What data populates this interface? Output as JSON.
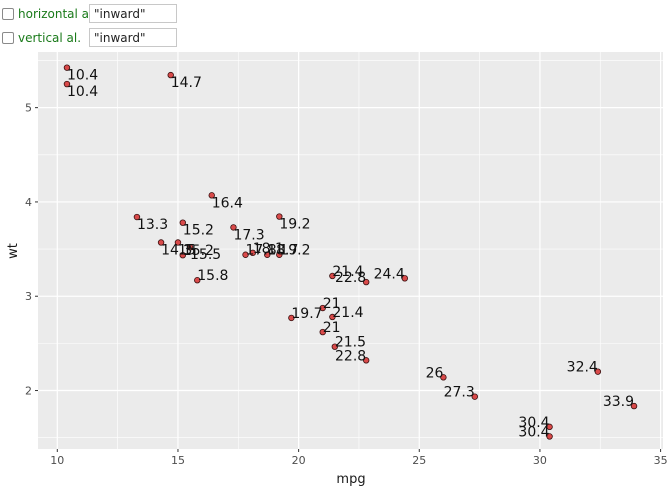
{
  "controls": [
    {
      "label": "horizontal al.",
      "value": "\"inward\"",
      "checked": false
    },
    {
      "label": "vertical al.",
      "value": "\"inward\"",
      "checked": false
    }
  ],
  "chart_data": {
    "type": "scatter",
    "xlabel": "mpg",
    "ylabel": "wt",
    "xlim": [
      9.2,
      35.1
    ],
    "ylim": [
      1.38,
      5.59
    ],
    "xticks": [
      10,
      15,
      20,
      25,
      30,
      35
    ],
    "yticks": [
      2,
      3,
      4,
      5
    ],
    "grid": true,
    "panel_background": "#ebebeb",
    "grid_color": "#ffffff",
    "point_fill": "#d94a4a",
    "point_stroke": "#3a1010",
    "points": [
      {
        "x": 21.0,
        "y": 2.62,
        "label": "21"
      },
      {
        "x": 21.0,
        "y": 2.875,
        "label": "21"
      },
      {
        "x": 22.8,
        "y": 2.32,
        "label": "22.8"
      },
      {
        "x": 21.4,
        "y": 3.215,
        "label": "21.4"
      },
      {
        "x": 18.7,
        "y": 3.44,
        "label": "18.7"
      },
      {
        "x": 18.1,
        "y": 3.46,
        "label": "18.1"
      },
      {
        "x": 14.3,
        "y": 3.57,
        "label": "14.3"
      },
      {
        "x": 24.4,
        "y": 3.19,
        "label": "24.4"
      },
      {
        "x": 22.8,
        "y": 3.15,
        "label": "22.8"
      },
      {
        "x": 19.2,
        "y": 3.44,
        "label": "19.2"
      },
      {
        "x": 17.8,
        "y": 3.44,
        "label": "17.8"
      },
      {
        "x": 16.4,
        "y": 4.07,
        "label": "16.4"
      },
      {
        "x": 17.3,
        "y": 3.73,
        "label": "17.3"
      },
      {
        "x": 15.2,
        "y": 3.78,
        "label": "15.2"
      },
      {
        "x": 10.4,
        "y": 5.25,
        "label": "10.4"
      },
      {
        "x": 10.4,
        "y": 5.424,
        "label": "10.4"
      },
      {
        "x": 14.7,
        "y": 5.345,
        "label": "14.7"
      },
      {
        "x": 32.4,
        "y": 2.2,
        "label": "32.4"
      },
      {
        "x": 30.4,
        "y": 1.615,
        "label": "30.4"
      },
      {
        "x": 33.9,
        "y": 1.835,
        "label": "33.9"
      },
      {
        "x": 21.5,
        "y": 2.465,
        "label": "21.5"
      },
      {
        "x": 15.5,
        "y": 3.52,
        "label": "15.5"
      },
      {
        "x": 15.2,
        "y": 3.435,
        "label": "15.2"
      },
      {
        "x": 13.3,
        "y": 3.84,
        "label": "13.3"
      },
      {
        "x": 19.2,
        "y": 3.845,
        "label": "19.2"
      },
      {
        "x": 27.3,
        "y": 1.935,
        "label": "27.3"
      },
      {
        "x": 26.0,
        "y": 2.14,
        "label": "26"
      },
      {
        "x": 30.4,
        "y": 1.513,
        "label": "30.4"
      },
      {
        "x": 15.8,
        "y": 3.17,
        "label": "15.8"
      },
      {
        "x": 19.7,
        "y": 2.77,
        "label": "19.7"
      },
      {
        "x": 15.0,
        "y": 3.57,
        "label": "15"
      },
      {
        "x": 21.4,
        "y": 2.78,
        "label": "21.4"
      }
    ]
  }
}
